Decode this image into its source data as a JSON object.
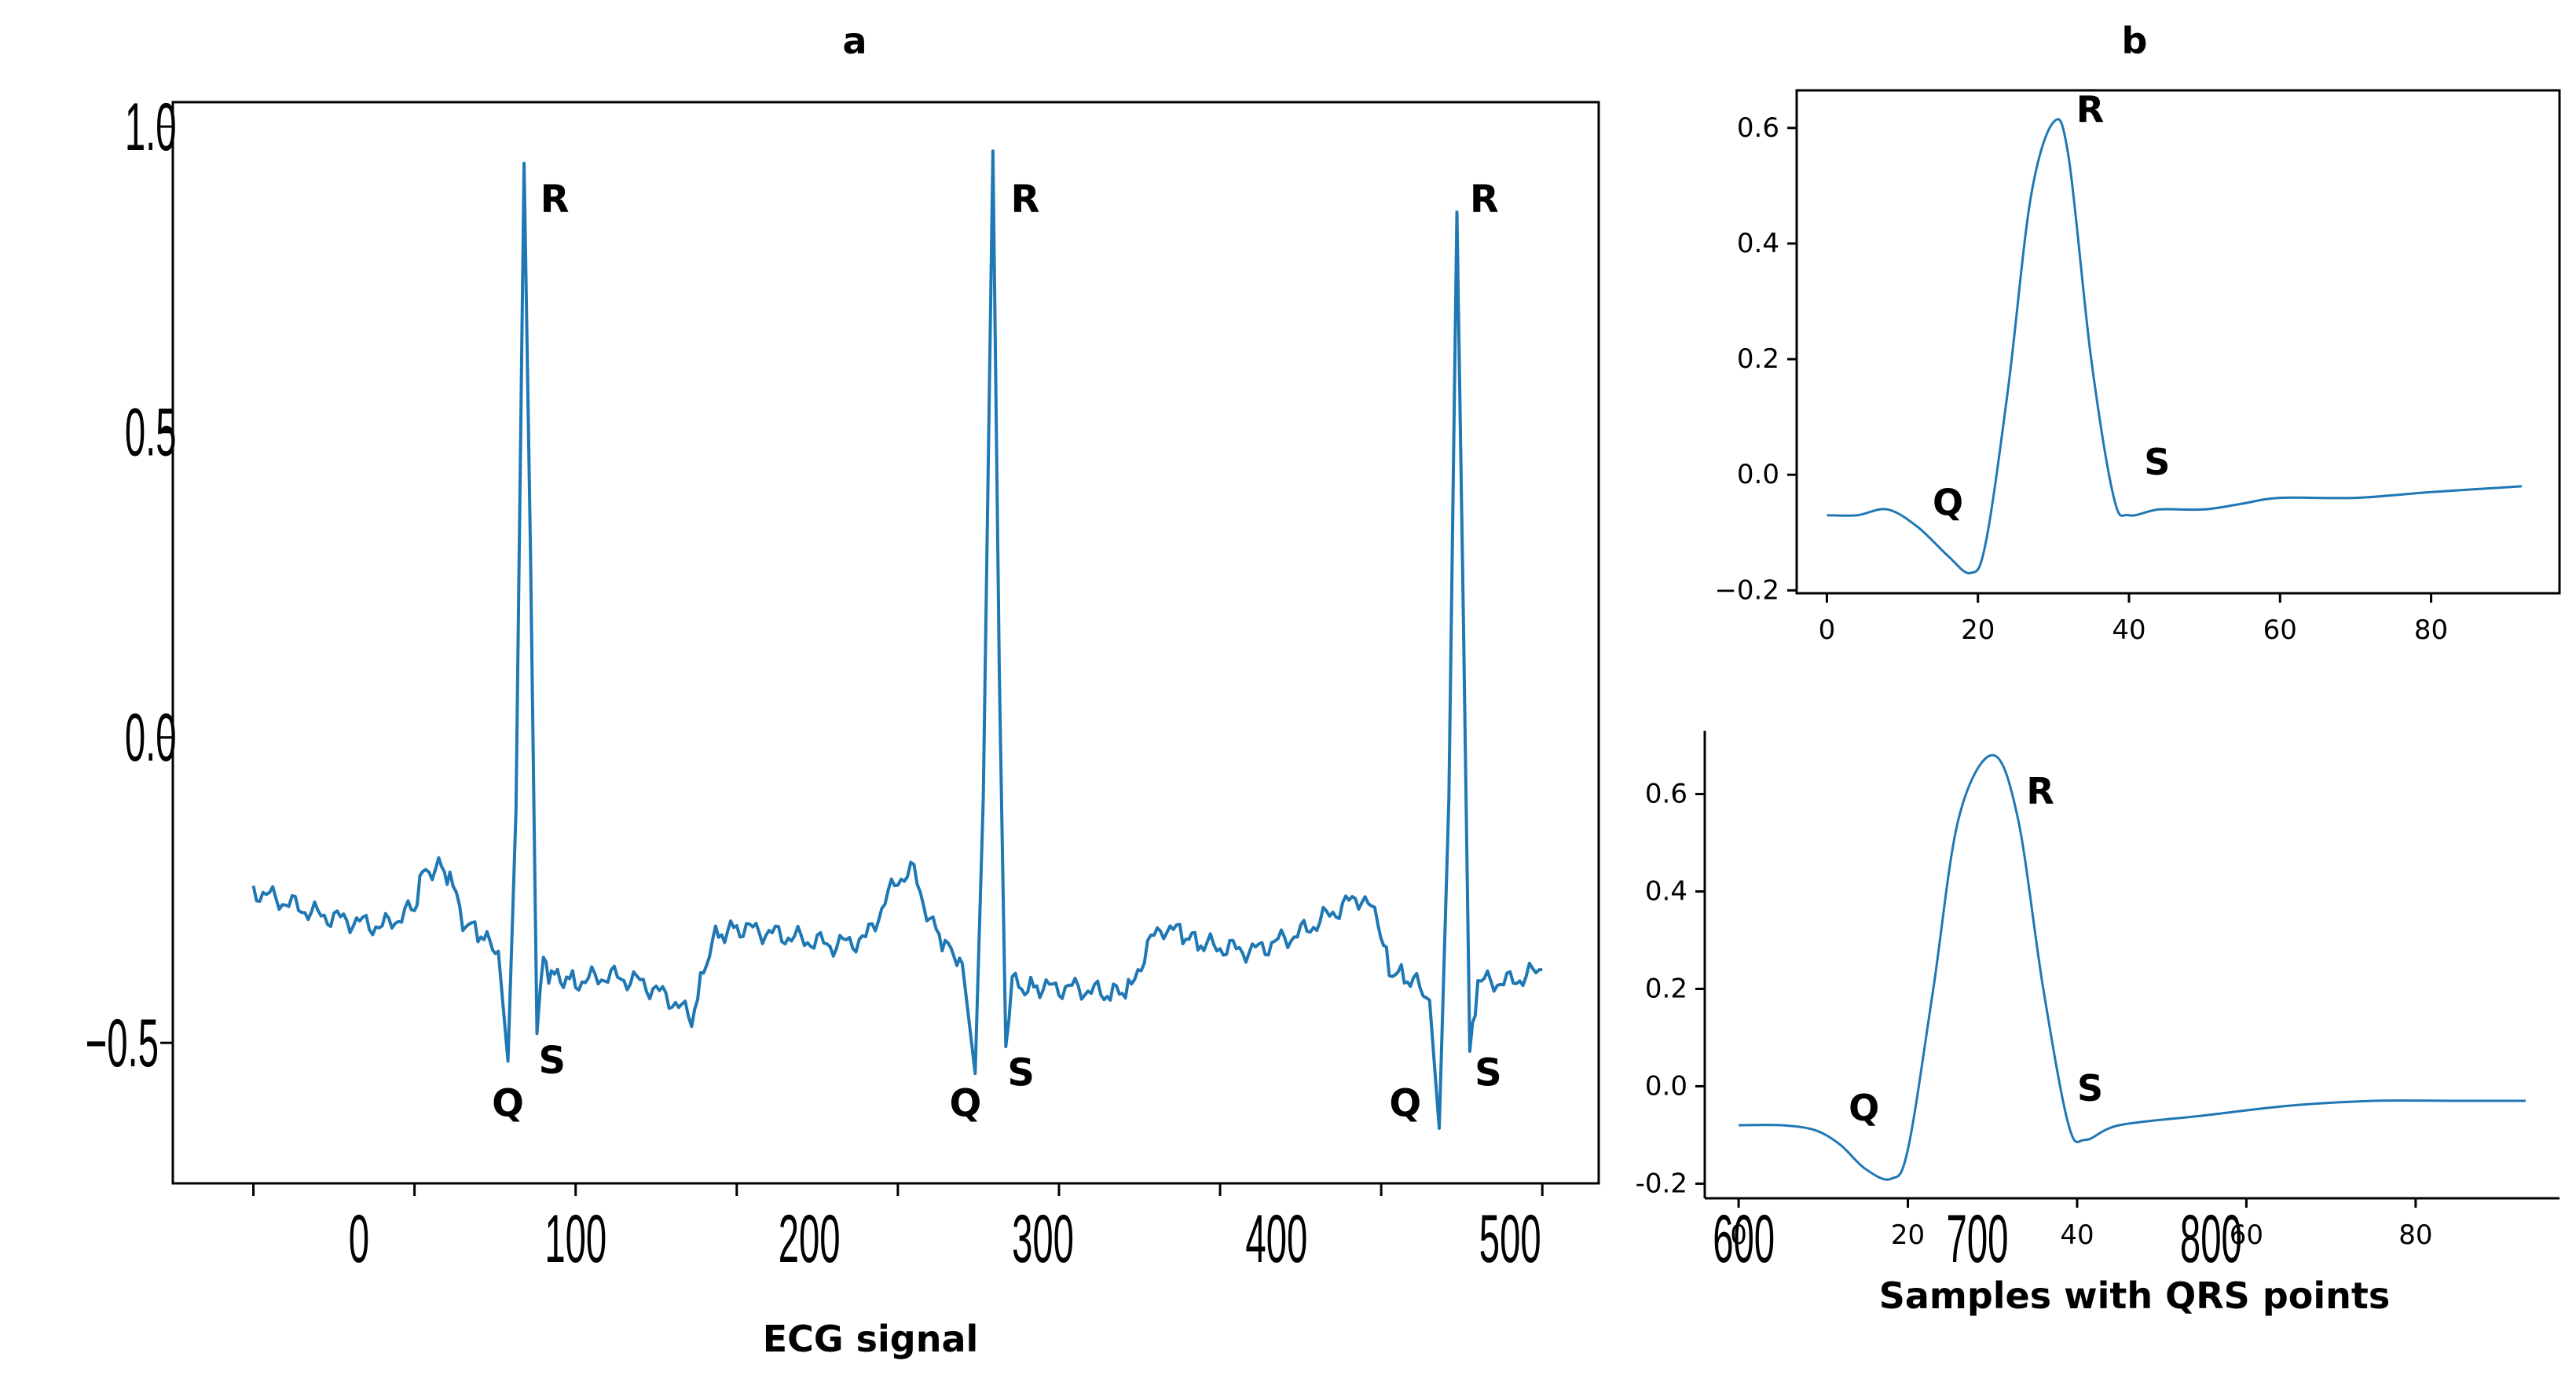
{
  "panels": {
    "a": {
      "title": "a"
    },
    "b": {
      "title": "b"
    }
  },
  "chart_data": [
    {
      "id": "ecg",
      "type": "line",
      "title": "a",
      "xlabel": "ECG signal",
      "ylabel": "",
      "xlim": [
        -50,
        835
      ],
      "ylim": [
        -0.73,
        1.04
      ],
      "xticks": [
        0,
        100,
        200,
        300,
        400,
        500,
        600,
        700,
        800
      ],
      "yticks": [
        -0.5,
        0.0,
        0.5,
        1.0
      ],
      "ytick_labels": [
        "−0.5",
        "0.0",
        "0.5",
        "1.0"
      ],
      "grid": false,
      "series": [
        {
          "color": "#1f77b4",
          "x": [
            0,
            10,
            20,
            40,
            60,
            80,
            100,
            105,
            115,
            122,
            130,
            145,
            152,
            158,
            163,
            168,
            172,
            176,
            180,
            185,
            200,
            220,
            240,
            260,
            272,
            285,
            300,
            320,
            340,
            360,
            380,
            390,
            400,
            410,
            420,
            435,
            440,
            448,
            453,
            459,
            463,
            467,
            471,
            475,
            490,
            510,
            530,
            545,
            555,
            565,
            575,
            590,
            620,
            650,
            680,
            688,
            698,
            705,
            720,
            730,
            736,
            742,
            747,
            751,
            755,
            760,
            780,
            800
          ],
          "y": [
            -0.25,
            -0.26,
            -0.27,
            -0.29,
            -0.3,
            -0.31,
            -0.28,
            -0.22,
            -0.21,
            -0.23,
            -0.3,
            -0.33,
            -0.35,
            -0.53,
            -0.12,
            0.94,
            0.3,
            -0.47,
            -0.37,
            -0.39,
            -0.4,
            -0.39,
            -0.4,
            -0.43,
            -0.46,
            -0.33,
            -0.31,
            -0.32,
            -0.33,
            -0.34,
            -0.33,
            -0.28,
            -0.23,
            -0.22,
            -0.3,
            -0.36,
            -0.37,
            -0.55,
            -0.1,
            0.96,
            0.1,
            -0.5,
            -0.4,
            -0.41,
            -0.41,
            -0.41,
            -0.42,
            -0.41,
            -0.34,
            -0.31,
            -0.32,
            -0.34,
            -0.35,
            -0.32,
            -0.27,
            -0.26,
            -0.3,
            -0.38,
            -0.4,
            -0.43,
            -0.64,
            -0.1,
            0.86,
            0.2,
            -0.52,
            -0.4,
            -0.4,
            -0.38
          ]
        }
      ],
      "annotations": [
        {
          "text": "R",
          "x": 178,
          "y": 0.86
        },
        {
          "text": "R",
          "x": 470,
          "y": 0.86
        },
        {
          "text": "R",
          "x": 755,
          "y": 0.86
        },
        {
          "text": "Q",
          "x": 148,
          "y": -0.62
        },
        {
          "text": "Q",
          "x": 432,
          "y": -0.62
        },
        {
          "text": "Q",
          "x": 705,
          "y": -0.62
        },
        {
          "text": "S",
          "x": 177,
          "y": -0.55
        },
        {
          "text": "S",
          "x": 468,
          "y": -0.57
        },
        {
          "text": "S",
          "x": 758,
          "y": -0.57
        }
      ]
    },
    {
      "id": "qrs-top",
      "type": "line",
      "title": "b",
      "xlabel": "",
      "ylabel": "",
      "xlim": [
        -4,
        97
      ],
      "ylim": [
        -0.205,
        0.665
      ],
      "xticks": [
        0,
        20,
        40,
        60,
        80
      ],
      "yticks": [
        -0.2,
        0.0,
        0.2,
        0.4,
        0.6
      ],
      "ytick_labels": [
        "−0.2",
        "0.0",
        "0.2",
        "0.4",
        "0.6"
      ],
      "grid": false,
      "series": [
        {
          "color": "#1f77b4",
          "x": [
            0,
            4,
            8,
            12,
            16,
            19,
            21,
            24,
            27,
            30,
            32,
            35,
            38,
            40,
            44,
            50,
            55,
            60,
            70,
            80,
            92
          ],
          "y": [
            -0.07,
            -0.07,
            -0.06,
            -0.09,
            -0.14,
            -0.17,
            -0.12,
            0.15,
            0.48,
            0.61,
            0.55,
            0.2,
            -0.04,
            -0.07,
            -0.06,
            -0.06,
            -0.05,
            -0.04,
            -0.04,
            -0.03,
            -0.02
          ]
        }
      ],
      "annotations": [
        {
          "text": "R",
          "x": 33,
          "y": 0.61
        },
        {
          "text": "Q",
          "x": 14,
          "y": -0.07
        },
        {
          "text": "S",
          "x": 42,
          "y": 0.0
        }
      ]
    },
    {
      "id": "qrs-bottom",
      "type": "line",
      "title": "",
      "xlabel": "Samples with QRS points",
      "ylabel": "",
      "xlim": [
        -4,
        97
      ],
      "ylim": [
        -0.23,
        0.73
      ],
      "xticks": [
        0,
        20,
        40,
        60,
        80
      ],
      "yticks": [
        -0.2,
        0.0,
        0.2,
        0.4,
        0.6
      ],
      "ytick_labels": [
        "-0.2",
        "0.0",
        "0.2",
        "0.4",
        "0.6"
      ],
      "grid": false,
      "series": [
        {
          "color": "#1f77b4",
          "x": [
            0,
            5,
            9,
            12,
            15,
            18,
            20,
            23,
            26,
            30,
            33,
            36,
            39,
            41,
            45,
            55,
            65,
            75,
            85,
            93
          ],
          "y": [
            -0.08,
            -0.08,
            -0.09,
            -0.12,
            -0.17,
            -0.19,
            -0.13,
            0.2,
            0.55,
            0.68,
            0.55,
            0.2,
            -0.08,
            -0.11,
            -0.08,
            -0.06,
            -0.04,
            -0.03,
            -0.03,
            -0.03
          ]
        }
      ],
      "annotations": [
        {
          "text": "R",
          "x": 34,
          "y": 0.58
        },
        {
          "text": "Q",
          "x": 13,
          "y": -0.07
        },
        {
          "text": "S",
          "x": 40,
          "y": -0.03
        }
      ]
    }
  ]
}
